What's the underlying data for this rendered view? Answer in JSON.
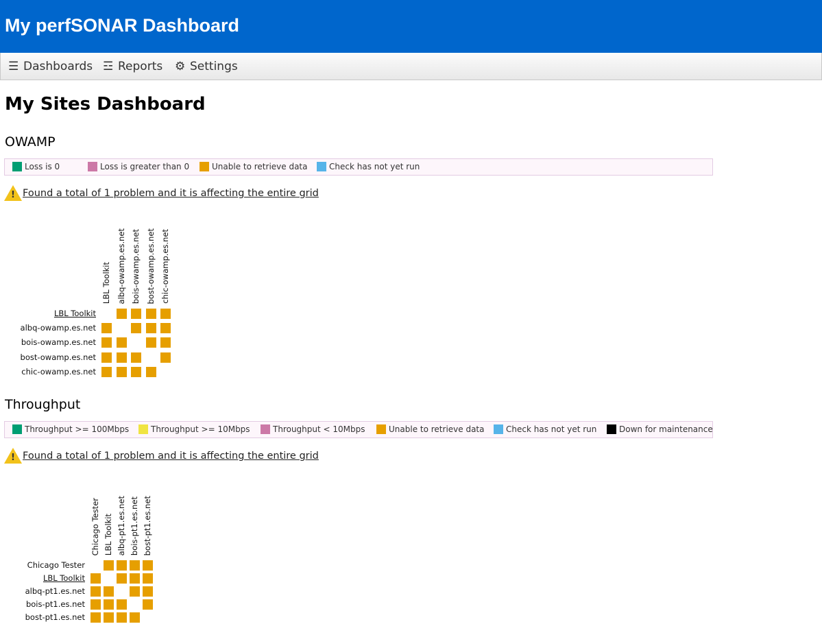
{
  "header": {
    "title": "My perfSONAR Dashboard"
  },
  "nav": [
    {
      "icon": "☰",
      "label": "Dashboards"
    },
    {
      "icon": "☲",
      "label": "Reports"
    },
    {
      "icon": "⚙",
      "label": "Settings"
    }
  ],
  "page_title": "My Sites Dashboard",
  "sections": [
    {
      "title": "OWAMP",
      "legend": [
        {
          "color": "#009e73",
          "label": "Loss is 0"
        },
        {
          "color": "#cc79a7",
          "label": "Loss is greater than 0"
        },
        {
          "color": "#e69f00",
          "label": "Unable to retrieve data"
        },
        {
          "color": "#56b4e9",
          "label": "Check has not yet run"
        }
      ],
      "alert": {
        "icon": "!",
        "text": "Found a total of 1 problem and it is affecting the entire grid"
      },
      "columns": [
        "LBL Toolkit",
        "albq-owamp.es.net",
        "bois-owamp.es.net",
        "bost-owamp.es.net",
        "chic-owamp.es.net"
      ],
      "rows": [
        {
          "label": "LBL Toolkit",
          "link": true,
          "cells": [
            null,
            "#e69f00",
            "#e69f00",
            "#e69f00",
            "#e69f00"
          ]
        },
        {
          "label": "albq-owamp.es.net",
          "link": false,
          "cells": [
            "#e69f00",
            null,
            "#e69f00",
            "#e69f00",
            "#e69f00"
          ]
        },
        {
          "label": "bois-owamp.es.net",
          "link": false,
          "cells": [
            "#e69f00",
            "#e69f00",
            null,
            "#e69f00",
            "#e69f00"
          ]
        },
        {
          "label": "bost-owamp.es.net",
          "link": false,
          "cells": [
            "#e69f00",
            "#e69f00",
            "#e69f00",
            null,
            "#e69f00"
          ]
        },
        {
          "label": "chic-owamp.es.net",
          "link": false,
          "cells": [
            "#e69f00",
            "#e69f00",
            "#e69f00",
            "#e69f00",
            null
          ]
        }
      ]
    },
    {
      "title": "Throughput",
      "legend": [
        {
          "color": "#009e73",
          "label": "Throughput >= 100Mbps"
        },
        {
          "color": "#f0e442",
          "label": "Throughput >= 10Mbps"
        },
        {
          "color": "#cc79a7",
          "label": "Throughput < 10Mbps"
        },
        {
          "color": "#e69f00",
          "label": "Unable to retrieve data"
        },
        {
          "color": "#56b4e9",
          "label": "Check has not yet run"
        },
        {
          "color": "#000000",
          "label": "Down for maintenance"
        }
      ],
      "alert": {
        "icon": "!",
        "text": "Found a total of 1 problem and it is affecting the entire grid"
      },
      "columns": [
        "Chicago Tester",
        "LBL Toolkit",
        "albq-pt1.es.net",
        "bois-pt1.es.net",
        "bost-pt1.es.net"
      ],
      "rows": [
        {
          "label": "Chicago Tester",
          "link": false,
          "cells": [
            null,
            "#e69f00",
            "#e69f00",
            "#e69f00",
            "#e69f00"
          ]
        },
        {
          "label": "LBL Toolkit",
          "link": true,
          "cells": [
            "#e69f00",
            null,
            "#e69f00",
            "#e69f00",
            "#e69f00"
          ]
        },
        {
          "label": "albq-pt1.es.net",
          "link": false,
          "cells": [
            "#e69f00",
            "#e69f00",
            null,
            "#e69f00",
            "#e69f00"
          ]
        },
        {
          "label": "bois-pt1.es.net",
          "link": false,
          "cells": [
            "#e69f00",
            "#e69f00",
            "#e69f00",
            null,
            "#e69f00"
          ]
        },
        {
          "label": "bost-pt1.es.net",
          "link": false,
          "cells": [
            "#e69f00",
            "#e69f00",
            "#e69f00",
            "#e69f00",
            null
          ]
        }
      ]
    }
  ]
}
